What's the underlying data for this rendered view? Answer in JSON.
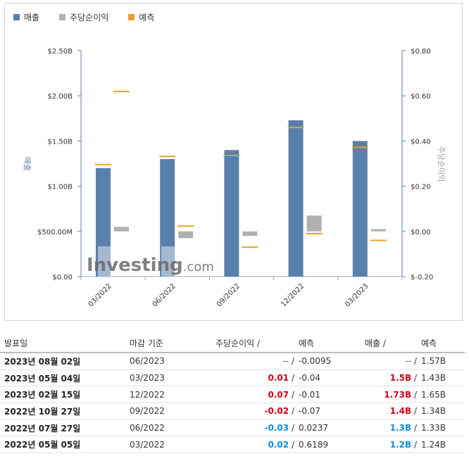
{
  "legend": {
    "revenue": {
      "label": "매출",
      "color": "#5b7fac"
    },
    "eps": {
      "label": "주당순이익",
      "color": "#b0b0b0"
    },
    "forecast": {
      "label": "예측",
      "color": "#e8a227"
    }
  },
  "watermark": {
    "brand": "Investing",
    "suffix": ".com"
  },
  "chart_data": {
    "type": "bar",
    "categories": [
      "03/2022",
      "06/2022",
      "09/2022",
      "12/2022",
      "03/2023"
    ],
    "ylabel": "매출",
    "y2label": "주당순이익",
    "ylim": [
      0,
      2.5
    ],
    "y2lim": [
      -0.2,
      0.8
    ],
    "y_ticks": [
      "$0.00",
      "$500.00M",
      "$1.00B",
      "$1.50B",
      "$2.00B",
      "$2.50B"
    ],
    "y2_ticks": [
      "$-0.20",
      "$0.00",
      "$0.20",
      "$0.40",
      "$0.60",
      "$0.80"
    ],
    "series": [
      {
        "name": "매출",
        "axis": "left",
        "unit": "B",
        "values": [
          1.2,
          1.3,
          1.4,
          1.73,
          1.5
        ]
      },
      {
        "name": "매출 예측",
        "axis": "left",
        "unit": "B",
        "values": [
          1.24,
          1.33,
          1.34,
          1.65,
          1.43
        ]
      },
      {
        "name": "주당순이익",
        "axis": "right",
        "values": [
          0.02,
          -0.03,
          -0.02,
          0.07,
          0.01
        ]
      },
      {
        "name": "주당순이익 예측",
        "axis": "right",
        "values": [
          0.6189,
          0.0237,
          -0.07,
          -0.01,
          -0.04
        ]
      }
    ],
    "grid": false
  },
  "table": {
    "headers": {
      "date": "발표일",
      "period": "마감 기준",
      "eps": "주당순이익",
      "eps_forecast": "예측",
      "revenue": "매출",
      "revenue_forecast": "예측"
    },
    "separator": "/",
    "rows": [
      {
        "date": "2023년 08월 02일",
        "period": "06/2023",
        "eps": "--",
        "eps_forecast": "-0.0095",
        "revenue": "--",
        "revenue_forecast": "1.57B",
        "eps_tone": "neu",
        "rev_tone": "neu"
      },
      {
        "date": "2023년 05월 04일",
        "period": "03/2023",
        "eps": "0.01",
        "eps_forecast": "-0.04",
        "revenue": "1.5B",
        "revenue_forecast": "1.43B",
        "eps_tone": "pos",
        "rev_tone": "pos"
      },
      {
        "date": "2023년 02월 15일",
        "period": "12/2022",
        "eps": "0.07",
        "eps_forecast": "-0.01",
        "revenue": "1.73B",
        "revenue_forecast": "1.65B",
        "eps_tone": "pos",
        "rev_tone": "pos"
      },
      {
        "date": "2022년 10월 27일",
        "period": "09/2022",
        "eps": "-0.02",
        "eps_forecast": "-0.07",
        "revenue": "1.4B",
        "revenue_forecast": "1.34B",
        "eps_tone": "pos",
        "rev_tone": "pos"
      },
      {
        "date": "2022년 07월 27일",
        "period": "06/2022",
        "eps": "-0.03",
        "eps_forecast": "0.0237",
        "revenue": "1.3B",
        "revenue_forecast": "1.33B",
        "eps_tone": "neg",
        "rev_tone": "neg"
      },
      {
        "date": "2022년 05월 05일",
        "period": "03/2022",
        "eps": "0.02",
        "eps_forecast": "0.6189",
        "revenue": "1.2B",
        "revenue_forecast": "1.24B",
        "eps_tone": "neg",
        "rev_tone": "neg"
      }
    ]
  }
}
